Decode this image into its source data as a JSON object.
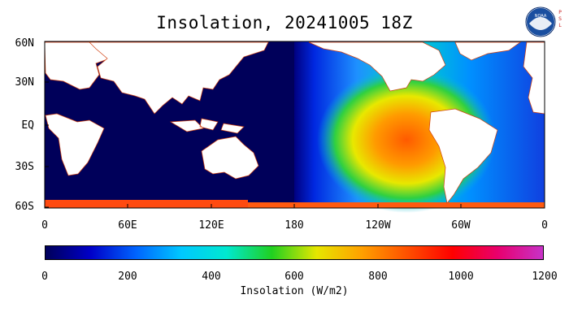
{
  "title": "Insolation, 20241005 18Z",
  "logo": {
    "text": "NOAA",
    "side_text": "PSL"
  },
  "map": {
    "lat_labels": [
      "60N",
      "30N",
      "EQ",
      "30S",
      "60S"
    ],
    "lon_labels": [
      "0",
      "60E",
      "120E",
      "180",
      "120W",
      "60W",
      "0"
    ]
  },
  "colorbar": {
    "ticks": [
      "0",
      "200",
      "400",
      "600",
      "800",
      "1000",
      "1200"
    ],
    "label": "Insolation (W/m2)",
    "colors": [
      "#00005a",
      "#0000c8",
      "#0064ff",
      "#00c8ff",
      "#00e8d0",
      "#20d020",
      "#e6e600",
      "#ffa000",
      "#ff5000",
      "#ff0000",
      "#e8006e",
      "#c832c8"
    ]
  }
}
